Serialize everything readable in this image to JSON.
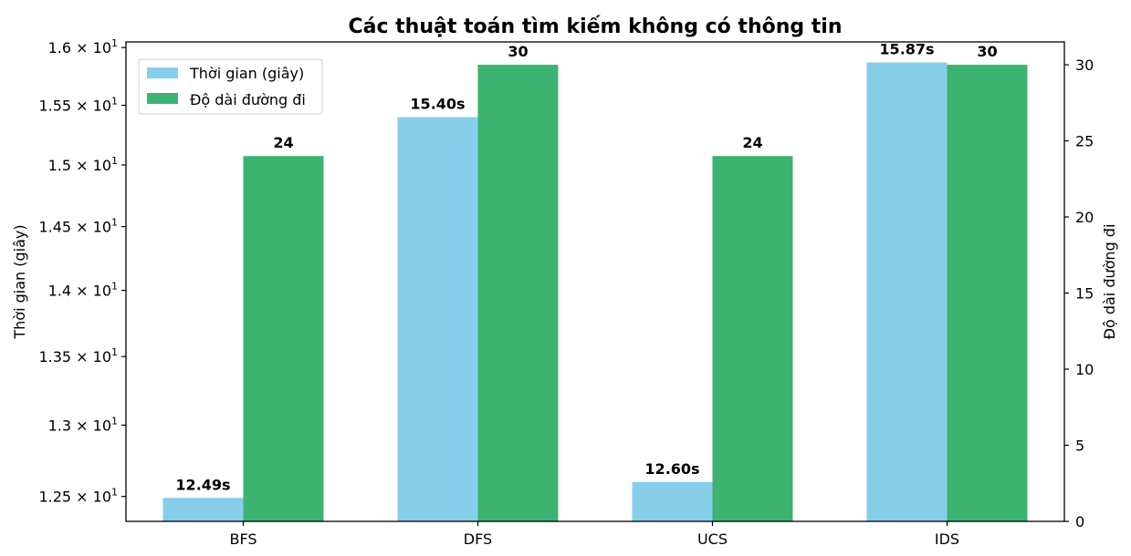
{
  "chart_data": {
    "type": "bar",
    "title": "Các thuật toán tìm kiếm không có thông tin",
    "categories": [
      "BFS",
      "DFS",
      "UCS",
      "IDS"
    ],
    "series": [
      {
        "name": "Thời gian (giây)",
        "axis": "left",
        "color": "#87CEEB",
        "label_color": "#0000FF",
        "values": [
          12.49,
          15.4,
          12.6,
          15.87
        ],
        "labels": [
          "12.49s",
          "15.40s",
          "12.60s",
          "15.87s"
        ]
      },
      {
        "name": "Độ dài đường đi",
        "axis": "right",
        "color": "#3CB371",
        "label_color": "#006400",
        "values": [
          24,
          30,
          24,
          30
        ],
        "labels": [
          "24",
          "30",
          "24",
          "30"
        ]
      }
    ],
    "y_left": {
      "label": "Thời gian (giây)",
      "scale": "log",
      "range": [
        12.33,
        16.05
      ],
      "ticks": [
        12.5,
        13.0,
        13.5,
        14.0,
        14.5,
        15.0,
        15.5,
        16.0
      ],
      "tick_mantissas": [
        "1.25",
        "1.3",
        "1.35",
        "1.4",
        "1.45",
        "1.5",
        "1.55",
        "1.6"
      ],
      "tick_base": "10",
      "tick_exponent": "1"
    },
    "y_right": {
      "label": "Độ dài đường đi",
      "scale": "linear",
      "range": [
        0,
        31.5
      ],
      "ticks": [
        0,
        5,
        10,
        15,
        20,
        25,
        30
      ],
      "tick_labels": [
        "0",
        "5",
        "10",
        "15",
        "20",
        "25",
        "30"
      ]
    },
    "legend": "top-left",
    "grid": false
  }
}
